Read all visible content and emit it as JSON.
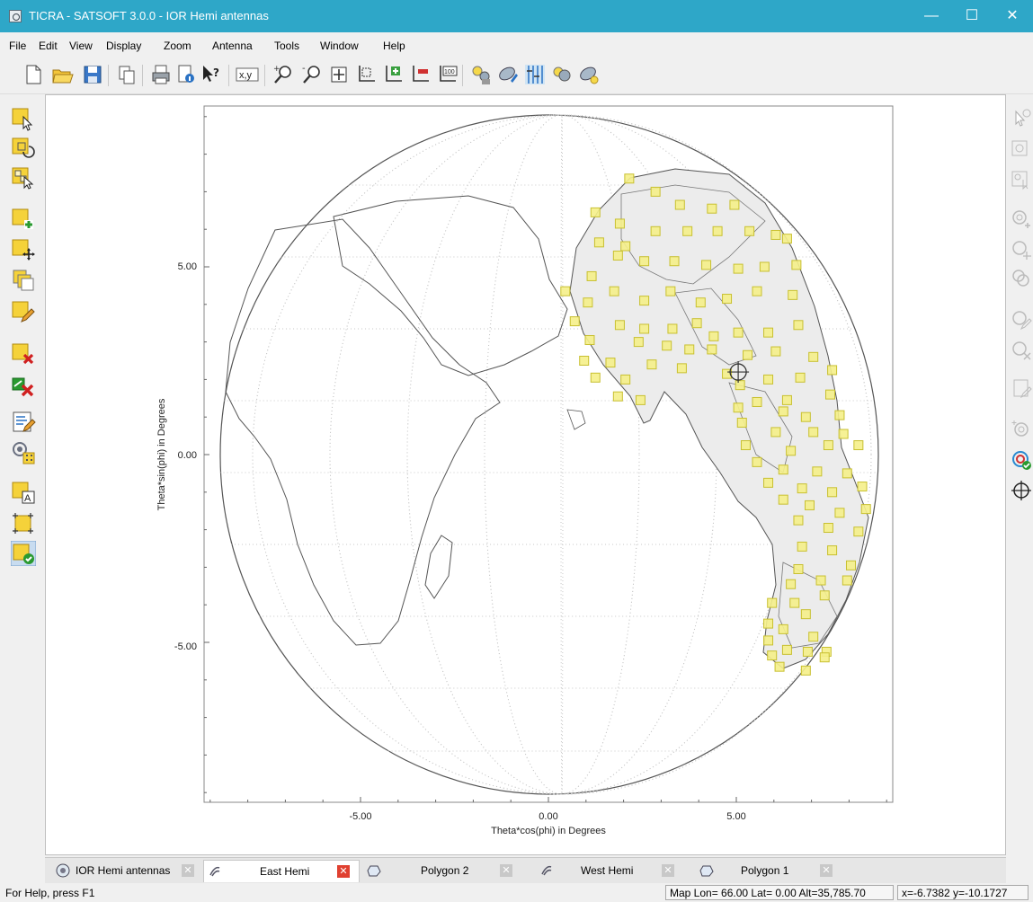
{
  "window": {
    "title": "TICRA - SATSOFT 3.0.0 - IOR Hemi antennas",
    "minimize": "—",
    "maximize": "☐",
    "close": "✕"
  },
  "menu": [
    "File",
    "Edit",
    "View",
    "Display",
    "Zoom",
    "Antenna",
    "Tools",
    "Window",
    "Help"
  ],
  "toolbar": {
    "items": [
      "new-file-icon",
      "open-folder-icon",
      "save-icon",
      "copy-icon",
      "print-icon",
      "print-preview-icon",
      "context-help-icon",
      "xy-coordinates-icon",
      "zoom-in-icon",
      "zoom-out-icon",
      "pan-icon",
      "zoom-box-icon",
      "zoom-add-icon",
      "zoom-remove-icon",
      "zoom-100-icon",
      "beam-settings-icon",
      "antenna-edit-icon",
      "grid-settings-icon",
      "beam-display-icon",
      "antenna-light-icon"
    ],
    "xy_label": "x,y",
    "zoom_100_label": "100"
  },
  "left_tools": [
    "select-pointer-icon",
    "rotate-select-icon",
    "multi-select-icon",
    "add-polygon-icon",
    "move-polygon-icon",
    "copy-polygon-icon",
    "edit-polygon-icon",
    "delete-polygon-icon",
    "delete-all-polygons-icon",
    "polygon-properties-icon",
    "grid-points-icon",
    "label-polygon-icon",
    "resize-polygon-icon",
    "polygon-check-icon"
  ],
  "left_tools_text": {
    "label_tool": "A"
  },
  "right_tools": [
    "beam-select-icon",
    "beam-rotate-icon",
    "beam-multiselect-icon",
    "beam-add-icon",
    "beam-move-icon",
    "beam-copy-icon",
    "beam-edit-icon",
    "beam-delete-icon",
    "beam-properties-icon",
    "beam-add-light-icon",
    "beam-active-icon",
    "crosshair-icon"
  ],
  "plot": {
    "xlabel": "Theta*cos(phi) in Degrees",
    "ylabel": "Theta*sin(phi) in Degrees",
    "x_ticks": [
      "-5.00",
      "0.00",
      "5.00"
    ],
    "y_ticks": [
      "5.00",
      "0.00",
      "-5.00"
    ]
  },
  "chart_data": {
    "type": "scatter",
    "xlabel": "Theta*cos(phi) in Degrees",
    "ylabel": "Theta*sin(phi) in Degrees",
    "xlim": [
      -9.2,
      9.2
    ],
    "ylim": [
      -9.2,
      9.2
    ],
    "grid": true,
    "series": [
      {
        "marker": "square",
        "color": "#f5f08a",
        "points": [
          [
            2.15,
            7.35
          ],
          [
            2.85,
            7.0
          ],
          [
            3.5,
            6.65
          ],
          [
            4.35,
            6.55
          ],
          [
            4.95,
            6.65
          ],
          [
            1.9,
            6.15
          ],
          [
            2.85,
            5.95
          ],
          [
            3.7,
            5.95
          ],
          [
            4.5,
            5.95
          ],
          [
            5.35,
            5.95
          ],
          [
            6.05,
            5.85
          ],
          [
            6.35,
            5.75
          ],
          [
            1.25,
            6.45
          ],
          [
            1.35,
            5.65
          ],
          [
            2.05,
            5.55
          ],
          [
            1.85,
            5.3
          ],
          [
            2.55,
            5.15
          ],
          [
            3.35,
            5.15
          ],
          [
            4.2,
            5.05
          ],
          [
            5.05,
            4.95
          ],
          [
            5.75,
            5.0
          ],
          [
            6.6,
            5.05
          ],
          [
            1.15,
            4.75
          ],
          [
            1.75,
            4.35
          ],
          [
            2.55,
            4.1
          ],
          [
            3.25,
            4.35
          ],
          [
            4.05,
            4.05
          ],
          [
            4.75,
            4.15
          ],
          [
            5.55,
            4.35
          ],
          [
            6.5,
            4.25
          ],
          [
            0.45,
            4.35
          ],
          [
            1.05,
            4.05
          ],
          [
            0.7,
            3.55
          ],
          [
            1.9,
            3.45
          ],
          [
            2.55,
            3.35
          ],
          [
            3.3,
            3.35
          ],
          [
            3.95,
            3.5
          ],
          [
            4.4,
            3.15
          ],
          [
            5.05,
            3.25
          ],
          [
            5.85,
            3.25
          ],
          [
            6.65,
            3.45
          ],
          [
            1.1,
            3.05
          ],
          [
            2.4,
            3.0
          ],
          [
            3.15,
            2.9
          ],
          [
            3.75,
            2.8
          ],
          [
            4.35,
            2.8
          ],
          [
            5.3,
            2.65
          ],
          [
            6.05,
            2.75
          ],
          [
            7.05,
            2.6
          ],
          [
            0.95,
            2.5
          ],
          [
            1.65,
            2.45
          ],
          [
            2.75,
            2.4
          ],
          [
            3.55,
            2.3
          ],
          [
            4.75,
            2.15
          ],
          [
            5.85,
            2.0
          ],
          [
            6.7,
            2.05
          ],
          [
            7.55,
            2.25
          ],
          [
            1.25,
            2.05
          ],
          [
            2.05,
            2.0
          ],
          [
            5.1,
            1.85
          ],
          [
            5.55,
            1.4
          ],
          [
            6.35,
            1.45
          ],
          [
            7.5,
            1.6
          ],
          [
            1.85,
            1.55
          ],
          [
            2.45,
            1.45
          ],
          [
            5.05,
            1.25
          ],
          [
            6.25,
            1.15
          ],
          [
            6.85,
            1.0
          ],
          [
            7.75,
            1.05
          ],
          [
            5.15,
            0.85
          ],
          [
            6.05,
            0.6
          ],
          [
            7.05,
            0.6
          ],
          [
            7.85,
            0.55
          ],
          [
            5.25,
            0.25
          ],
          [
            6.45,
            0.1
          ],
          [
            7.45,
            0.25
          ],
          [
            8.25,
            0.25
          ],
          [
            5.55,
            -0.2
          ],
          [
            6.25,
            -0.4
          ],
          [
            7.15,
            -0.45
          ],
          [
            7.95,
            -0.5
          ],
          [
            5.85,
            -0.75
          ],
          [
            6.75,
            -0.9
          ],
          [
            7.55,
            -1.0
          ],
          [
            8.35,
            -0.85
          ],
          [
            6.25,
            -1.2
          ],
          [
            6.95,
            -1.35
          ],
          [
            7.75,
            -1.55
          ],
          [
            8.45,
            -1.45
          ],
          [
            6.65,
            -1.75
          ],
          [
            7.45,
            -1.95
          ],
          [
            8.25,
            -2.05
          ],
          [
            6.75,
            -2.45
          ],
          [
            7.55,
            -2.55
          ],
          [
            6.65,
            -3.05
          ],
          [
            8.05,
            -2.95
          ],
          [
            6.45,
            -3.45
          ],
          [
            7.25,
            -3.35
          ],
          [
            7.95,
            -3.35
          ],
          [
            6.55,
            -3.95
          ],
          [
            7.35,
            -3.75
          ],
          [
            5.95,
            -3.95
          ],
          [
            6.85,
            -4.25
          ],
          [
            5.85,
            -4.5
          ],
          [
            6.25,
            -4.65
          ],
          [
            7.05,
            -4.85
          ],
          [
            5.85,
            -4.95
          ],
          [
            6.35,
            -5.2
          ],
          [
            6.9,
            -5.25
          ],
          [
            5.95,
            -5.35
          ],
          [
            7.4,
            -5.25
          ],
          [
            6.15,
            -5.65
          ],
          [
            6.85,
            -5.75
          ],
          [
            7.35,
            -5.4
          ]
        ]
      }
    ],
    "cursor": [
      5.05,
      2.2
    ]
  },
  "tabs": [
    {
      "label": "IOR Hemi antennas",
      "icon": "antenna-icon",
      "active": false
    },
    {
      "label": "East Hemi",
      "icon": "beam-icon",
      "active": true
    },
    {
      "label": "Polygon 2",
      "icon": "polygon-icon",
      "active": false
    },
    {
      "label": "West Hemi",
      "icon": "beam-icon",
      "active": false
    },
    {
      "label": "Polygon 1",
      "icon": "polygon-icon",
      "active": false
    }
  ],
  "tab_close": "✕",
  "status": {
    "help": "For Help, press F1",
    "map_position": "Map Lon= 66.00 Lat=  0.00 Alt=35,785.70",
    "xy_position": "x=-6.7382 y=-10.1727"
  }
}
